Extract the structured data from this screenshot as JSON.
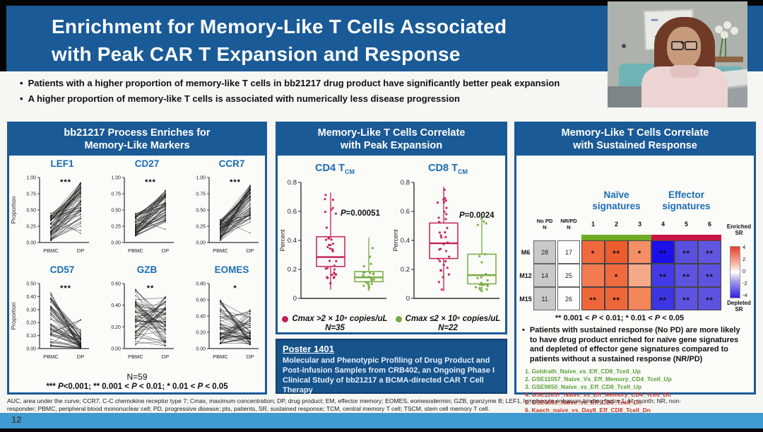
{
  "header": {
    "title_line1": "Enrichment for Memory-Like T Cells Associated",
    "title_line2": "with Peak CAR T Expansion and Response"
  },
  "bullets": [
    "Patients with a higher proportion of memory-like T cells in bb21217 drug product have significantly better peak expansion",
    "A higher proportion of memory-like T cells is associated with numerically less disease progression"
  ],
  "panels": {
    "process_title": "bb21217 Process Enriches for\nMemory-Like Markers",
    "expansion_title": "Memory-Like T Cells Correlate\nwith Peak Expansion",
    "response_title": "Memory-Like T Cells Correlate\nwith Sustained Response"
  },
  "poster": {
    "label": "Poster 1401",
    "text": "Molecular and Phenotypic Profiling of Drug Product and Post-infusion Samples from CRB402, an Ongoing Phase I Clinical Study of bb21217 a BCMA-directed CAR T Cell Therapy"
  },
  "footer": {
    "line1": "AUC, area under the curve; CCR7, C-C chemokine receptor type 7; Cmax, maximum concentration; DP, drug product; EM, effector memory; EOMES, eomesodermin; GZB, granzyme B; LEF1, lymphocyte enhancer-binding factor 1; M, month; NR, non-",
    "line2": "responder; PBMC, peripheral blood mononuclear cell; PD, progressive disease; pts, patients, SR, sustained response; TCM, central memory T cell; TSCM, stem cell memory T cell.",
    "page_number": "12"
  },
  "colors": {
    "accent_blue": "#1a5a96",
    "marker_blue": "#1b6cb5",
    "high_red": "#c2205a",
    "low_green": "#76ab3f",
    "naive_bar_green": "#6faa25",
    "effector_bar_crimson": "#c81543",
    "bottom_bar_blue": "#3f9ad2"
  },
  "chart_data": [
    {
      "panel": "process",
      "type": "line",
      "title": "bb21217 Process Enriches for Memory-Like Markers",
      "x_categories": [
        "PBMC",
        "DP"
      ],
      "ylabel": "Proportion",
      "n_label": "N=59",
      "n_lines": 59,
      "sig_legend": "*** P<0.001; ** 0.001 < P < 0.01; * 0.01 < P < 0.05",
      "subplots": [
        {
          "marker": "LEF1",
          "stars": "***",
          "ylim": [
            0,
            1.0
          ],
          "yticks": [
            0,
            0.25,
            0.5,
            0.75,
            1.0
          ],
          "tick_decimals": 2,
          "trend": "up",
          "pbmc_range": [
            0.02,
            0.45
          ],
          "dp_range": [
            0.08,
            0.92
          ]
        },
        {
          "marker": "CD27",
          "stars": "***",
          "ylim": [
            0,
            1.0
          ],
          "yticks": [
            0,
            0.25,
            0.5,
            0.75,
            1.0
          ],
          "tick_decimals": 2,
          "trend": "up",
          "pbmc_range": [
            0.1,
            0.47
          ],
          "dp_range": [
            0.1,
            0.8
          ]
        },
        {
          "marker": "CCR7",
          "stars": "***",
          "ylim": [
            0,
            1.0
          ],
          "yticks": [
            0,
            0.25,
            0.5,
            0.75,
            1.0
          ],
          "tick_decimals": 2,
          "trend": "up",
          "pbmc_range": [
            0.03,
            0.35
          ],
          "dp_range": [
            0.05,
            0.88
          ]
        },
        {
          "marker": "CD57",
          "stars": "***",
          "ylim": [
            0,
            0.5
          ],
          "yticks": [
            0,
            0.1,
            0.2,
            0.3,
            0.4,
            0.5
          ],
          "tick_decimals": 2,
          "trend": "down",
          "pbmc_range": [
            0.01,
            0.43
          ],
          "dp_range": [
            0.0,
            0.22
          ]
        },
        {
          "marker": "GZB",
          "stars": "**",
          "ylim": [
            0,
            0.6
          ],
          "yticks": [
            0,
            0.2,
            0.4,
            0.6
          ],
          "tick_decimals": 2,
          "trend": "mixed",
          "pbmc_range": [
            0.03,
            0.57
          ],
          "dp_range": [
            0.02,
            0.48
          ]
        },
        {
          "marker": "EOMES",
          "stars": "*",
          "ylim": [
            0,
            0.8
          ],
          "yticks": [
            0,
            0.2,
            0.4,
            0.6,
            0.8
          ],
          "tick_decimals": 2,
          "trend": "mixed",
          "pbmc_range": [
            0.04,
            0.6
          ],
          "dp_range": [
            0.04,
            0.48
          ]
        }
      ]
    },
    {
      "panel": "expansion",
      "type": "box",
      "title": "Memory-Like T Cells Correlate with Peak Expansion",
      "ylabel": "Percent",
      "ylim": [
        0,
        0.8
      ],
      "yticks": [
        0,
        0.2,
        0.4,
        0.6,
        0.8
      ],
      "subplots": [
        {
          "title_main": "CD4 T",
          "title_sub": "CM",
          "p_label": "P=0.00051",
          "p_value_y": 0.57,
          "groups": [
            {
              "name": "Cmax high",
              "color": "#c2205a",
              "n": 35,
              "whisker_low": 0.06,
              "q1": 0.22,
              "median": 0.285,
              "q3": 0.425,
              "whisker_high": 0.73
            },
            {
              "name": "Cmax low",
              "color": "#76ab3f",
              "n": 22,
              "whisker_low": 0.05,
              "q1": 0.115,
              "median": 0.145,
              "q3": 0.185,
              "whisker_high": 0.42
            }
          ]
        },
        {
          "title_main": "CD8 T",
          "title_sub": "CM",
          "p_label": "P=0.0024",
          "p_value_y": 0.555,
          "groups": [
            {
              "name": "Cmax high",
              "color": "#c2205a",
              "n": 35,
              "whisker_low": 0.05,
              "q1": 0.275,
              "median": 0.38,
              "q3": 0.52,
              "whisker_high": 0.77
            },
            {
              "name": "Cmax low",
              "color": "#76ab3f",
              "n": 22,
              "whisker_low": 0.05,
              "q1": 0.1,
              "median": 0.16,
              "q3": 0.305,
              "whisker_high": 0.57
            }
          ]
        }
      ],
      "legend": [
        {
          "label": "Cmax >2 × 10⁵ copies/uL",
          "n_label": "N=35",
          "color": "#c2205a"
        },
        {
          "label": "Cmax ≤2 × 10⁵ copies/uL",
          "n_label": "N=22",
          "color": "#76ab3f"
        }
      ]
    },
    {
      "panel": "response",
      "type": "heatmap",
      "title": "Memory-Like T Cells Correlate with Sustained Response",
      "group_labels": [
        {
          "label": "Naïve\nsignatures",
          "bar_color": "#6faa25"
        },
        {
          "label": "Effector\nsignatures",
          "bar_color": "#c81543"
        }
      ],
      "col_headers": [
        "No PD\nN",
        "NR/PD\nN",
        "1",
        "2",
        "3",
        "4",
        "5",
        "6"
      ],
      "rows": [
        {
          "label": "M6",
          "no_pd": "28",
          "nr_pd": "17",
          "cells": [
            {
              "color": "#f0693d",
              "stars": "*"
            },
            {
              "color": "#ec5c2e",
              "stars": "**"
            },
            {
              "color": "#f48e66",
              "stars": "*"
            },
            {
              "color": "#1b10e8",
              "stars": "**"
            },
            {
              "color": "#5a50e0",
              "stars": "**"
            },
            {
              "color": "#6156e0",
              "stars": "**"
            }
          ]
        },
        {
          "label": "M12",
          "no_pd": "14",
          "nr_pd": "25",
          "cells": [
            {
              "color": "#f37b52",
              "stars": ""
            },
            {
              "color": "#f06a40",
              "stars": "*"
            },
            {
              "color": "#f6a988",
              "stars": ""
            },
            {
              "color": "#423ae4",
              "stars": "**"
            },
            {
              "color": "#5d53e0",
              "stars": "**"
            },
            {
              "color": "#5d53e0",
              "stars": "**"
            }
          ]
        },
        {
          "label": "M15",
          "no_pd": "11",
          "nr_pd": "26",
          "cells": [
            {
              "color": "#ee673a",
              "stars": "**"
            },
            {
              "color": "#ee673a",
              "stars": "**"
            },
            {
              "color": "#f4865c",
              "stars": ""
            },
            {
              "color": "#3d34e2",
              "stars": "**"
            },
            {
              "color": "#5d53e0",
              "stars": "**"
            },
            {
              "color": "#5d53e0",
              "stars": "**"
            }
          ]
        }
      ],
      "colorbar": {
        "top_label": "Enriched\nSR",
        "bottom_label": "Depleted\nSR",
        "ticks": [
          "4",
          "2",
          "0",
          "-2",
          "-4"
        ]
      },
      "footnote": "** 0.001 < P < 0.01; * 0.01 < P < 0.05",
      "bullet": "Patients with sustained response (No PD) are more likely to have drug product enriched for naïve gene signatures and depleted of effector gene signatures compared to patients without a sustained response (NR/PD)",
      "signatures_up": [
        "1. Goldrath_Naive_vs_Eff_CD8_Tcell_Up",
        "2. GSE11057_Naive_Vs_Eff_Memory_CD4_Tcell_Up",
        "3. GSE9650_Naive_vs_Eff_CD8_Tcell_Up"
      ],
      "signatures_dn": [
        "4. GSE11057_Naive_vs_Eff_Memory_CD4_Tcell_Dn",
        "5. GSE9650_Naive_vs_Eff_CD8_Tcell_Dn",
        "6. Kaech_naive_vs_Day8_Eff_CD8_Tcell_Dn"
      ]
    }
  ]
}
